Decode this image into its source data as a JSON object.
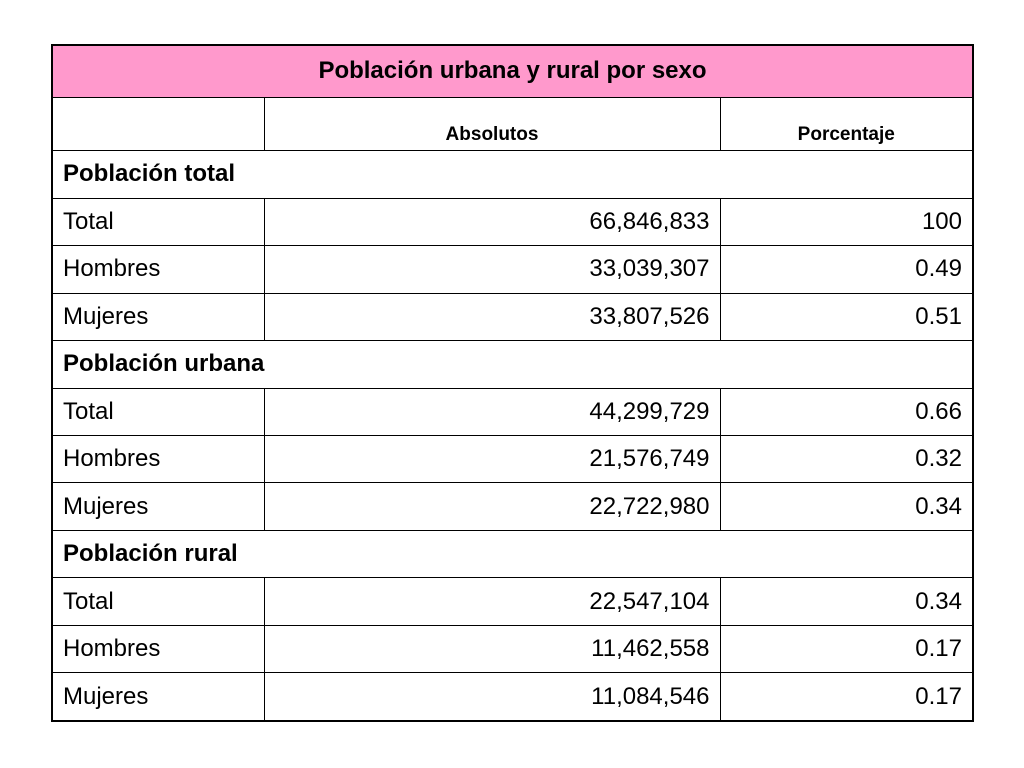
{
  "table": {
    "title": "Población urbana y rural por sexo",
    "headers": [
      "",
      "Absolutos",
      "Porcentaje"
    ],
    "sections": [
      {
        "label": "Población total",
        "rows": [
          {
            "label": "Total",
            "absolutos": "66,846,833",
            "porcentaje": "100"
          },
          {
            "label": "Hombres",
            "absolutos": "33,039,307",
            "porcentaje": "0.49"
          },
          {
            "label": "Mujeres",
            "absolutos": "33,807,526",
            "porcentaje": "0.51"
          }
        ]
      },
      {
        "label": "Población urbana",
        "rows": [
          {
            "label": "Total",
            "absolutos": "44,299,729",
            "porcentaje": "0.66"
          },
          {
            "label": "Hombres",
            "absolutos": "21,576,749",
            "porcentaje": "0.32"
          },
          {
            "label": "Mujeres",
            "absolutos": "22,722,980",
            "porcentaje": "0.34"
          }
        ]
      },
      {
        "label": "Población rural",
        "rows": [
          {
            "label": "Total",
            "absolutos": "22,547,104",
            "porcentaje": "0.34"
          },
          {
            "label": "Hombres",
            "absolutos": "11,462,558",
            "porcentaje": "0.17"
          },
          {
            "label": "Mujeres",
            "absolutos": "11,084,546",
            "porcentaje": "0.17"
          }
        ]
      }
    ],
    "colors": {
      "title_background": "#ff99cc",
      "border": "#000000"
    }
  }
}
